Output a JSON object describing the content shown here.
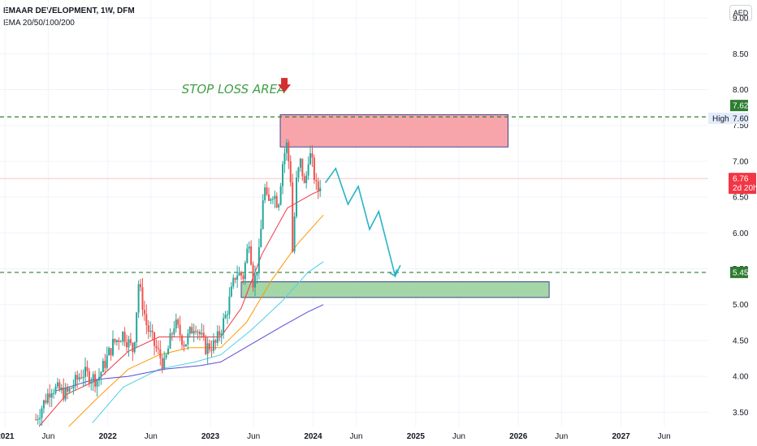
{
  "header": {
    "title": "EMAAR DEVELOPMENT, 1W, DFM",
    "indicator": "EMA 20/50/100/200",
    "currency": "AED"
  },
  "colors": {
    "up": "#26a69a",
    "down": "#ef5350",
    "ema20": "#f23645",
    "ema50": "#ff9800",
    "ema100": "#4dd0e1",
    "ema200": "#5b4bd6",
    "stop_zone": "#f7a5ab",
    "target_zone": "#a5d6a7",
    "dashed": "#2e7d32",
    "projection": "#26b5c6",
    "arrow": "#d32f2f",
    "current": "#f23645"
  },
  "chart_data": {
    "type": "candlestick",
    "ylim": [
      3.3,
      9.25
    ],
    "y_ticks": [
      "3.50",
      "4.00",
      "4.50",
      "5.00",
      "5.50",
      "6.00",
      "6.50",
      "7.00",
      "7.50",
      "8.00",
      "8.50",
      "9.00"
    ],
    "x_ticks": [
      {
        "label": "2021",
        "t": 2021.0,
        "bold": true
      },
      {
        "label": "Jun",
        "t": 2021.42,
        "bold": false
      },
      {
        "label": "2022",
        "t": 2022.0,
        "bold": true
      },
      {
        "label": "Jun",
        "t": 2022.42,
        "bold": false
      },
      {
        "label": "2023",
        "t": 2023.0,
        "bold": true
      },
      {
        "label": "Jun",
        "t": 2023.42,
        "bold": false
      },
      {
        "label": "2024",
        "t": 2024.0,
        "bold": true
      },
      {
        "label": "Jun",
        "t": 2024.42,
        "bold": false
      },
      {
        "label": "2025",
        "t": 2025.0,
        "bold": true
      },
      {
        "label": "Jun",
        "t": 2025.42,
        "bold": false
      },
      {
        "label": "2026",
        "t": 2026.0,
        "bold": true
      },
      {
        "label": "Jun",
        "t": 2026.42,
        "bold": false
      },
      {
        "label": "2027",
        "t": 2027.0,
        "bold": true
      },
      {
        "label": "Jun",
        "t": 2027.42,
        "bold": false
      }
    ],
    "x_range": [
      2020.95,
      2027.85
    ],
    "price_path": [
      [
        2021.3,
        3.4
      ],
      [
        2021.45,
        3.85
      ],
      [
        2021.6,
        3.75
      ],
      [
        2021.75,
        4.05
      ],
      [
        2021.9,
        3.95
      ],
      [
        2022.05,
        4.45
      ],
      [
        2022.15,
        4.6
      ],
      [
        2022.25,
        4.35
      ],
      [
        2022.3,
        5.3
      ],
      [
        2022.38,
        4.7
      ],
      [
        2022.45,
        4.45
      ],
      [
        2022.55,
        4.15
      ],
      [
        2022.65,
        4.75
      ],
      [
        2022.75,
        4.45
      ],
      [
        2022.85,
        4.75
      ],
      [
        2022.95,
        4.4
      ],
      [
        2023.05,
        4.45
      ],
      [
        2023.15,
        4.85
      ],
      [
        2023.25,
        5.45
      ],
      [
        2023.32,
        5.4
      ],
      [
        2023.38,
        5.95
      ],
      [
        2023.42,
        5.25
      ],
      [
        2023.48,
        5.75
      ],
      [
        2023.52,
        6.7
      ],
      [
        2023.56,
        6.35
      ],
      [
        2023.6,
        6.6
      ],
      [
        2023.66,
        6.4
      ],
      [
        2023.7,
        6.95
      ],
      [
        2023.74,
        7.25
      ],
      [
        2023.78,
        6.8
      ],
      [
        2023.8,
        5.75
      ],
      [
        2023.84,
        6.75
      ],
      [
        2023.88,
        7.0
      ],
      [
        2023.92,
        6.6
      ],
      [
        2023.96,
        7.15
      ],
      [
        2024.0,
        6.9
      ],
      [
        2024.04,
        6.55
      ],
      [
        2024.08,
        6.76
      ]
    ],
    "series": [
      {
        "name": "EMA 20",
        "color_key": "ema20",
        "points": [
          [
            2021.33,
            3.3
          ],
          [
            2021.6,
            3.75
          ],
          [
            2021.9,
            3.95
          ],
          [
            2022.2,
            4.35
          ],
          [
            2022.5,
            4.55
          ],
          [
            2022.8,
            4.55
          ],
          [
            2023.1,
            4.55
          ],
          [
            2023.3,
            4.95
          ],
          [
            2023.5,
            5.7
          ],
          [
            2023.75,
            6.35
          ],
          [
            2024.0,
            6.55
          ],
          [
            2024.08,
            6.6
          ]
        ]
      },
      {
        "name": "EMA 50",
        "color_key": "ema50",
        "points": [
          [
            2021.62,
            3.3
          ],
          [
            2021.9,
            3.7
          ],
          [
            2022.2,
            4.1
          ],
          [
            2022.5,
            4.3
          ],
          [
            2022.8,
            4.4
          ],
          [
            2023.1,
            4.4
          ],
          [
            2023.35,
            4.75
          ],
          [
            2023.6,
            5.35
          ],
          [
            2023.85,
            5.85
          ],
          [
            2024.1,
            6.25
          ]
        ]
      },
      {
        "name": "EMA 100",
        "color_key": "ema100",
        "points": [
          [
            2021.85,
            3.35
          ],
          [
            2022.15,
            3.85
          ],
          [
            2022.5,
            4.1
          ],
          [
            2022.85,
            4.2
          ],
          [
            2023.1,
            4.3
          ],
          [
            2023.4,
            4.65
          ],
          [
            2023.7,
            5.05
          ],
          [
            2023.95,
            5.45
          ],
          [
            2024.1,
            5.6
          ]
        ]
      },
      {
        "name": "EMA 200",
        "color_key": "ema200",
        "points": [
          [
            2021.5,
            3.8
          ],
          [
            2021.85,
            3.95
          ],
          [
            2022.2,
            4.0
          ],
          [
            2022.55,
            4.1
          ],
          [
            2022.9,
            4.15
          ],
          [
            2023.1,
            4.2
          ],
          [
            2023.4,
            4.45
          ],
          [
            2023.7,
            4.7
          ],
          [
            2023.95,
            4.9
          ],
          [
            2024.1,
            5.0
          ]
        ]
      }
    ],
    "projection": [
      [
        2024.12,
        6.7
      ],
      [
        2024.22,
        6.9
      ],
      [
        2024.34,
        6.4
      ],
      [
        2024.44,
        6.65
      ],
      [
        2024.55,
        6.05
      ],
      [
        2024.64,
        6.3
      ],
      [
        2024.8,
        5.4
      ],
      [
        2024.85,
        5.55
      ]
    ],
    "zones": [
      {
        "name": "stop",
        "color_key": "stop_zone",
        "t0": 2023.68,
        "t1": 2025.9,
        "y0": 7.2,
        "y1": 7.65
      },
      {
        "name": "target",
        "color_key": "target_zone",
        "t0": 2023.3,
        "t1": 2026.3,
        "y0": 5.1,
        "y1": 5.32
      }
    ],
    "levels": [
      {
        "name": "resistance",
        "value": 7.62
      },
      {
        "name": "support",
        "value": 5.45
      }
    ],
    "current_price": 6.76,
    "annotation": {
      "text": "STOP LOSS AREA",
      "t": 2022.72,
      "y": 7.95
    },
    "arrow": {
      "t": 2023.72,
      "y": 8.05
    },
    "labels": {
      "high_label": "High",
      "high_value": "7.60",
      "resistance_value": "7.62",
      "current_value": "6.76",
      "countdown": "2d 20h",
      "support_value": "5.45"
    }
  }
}
